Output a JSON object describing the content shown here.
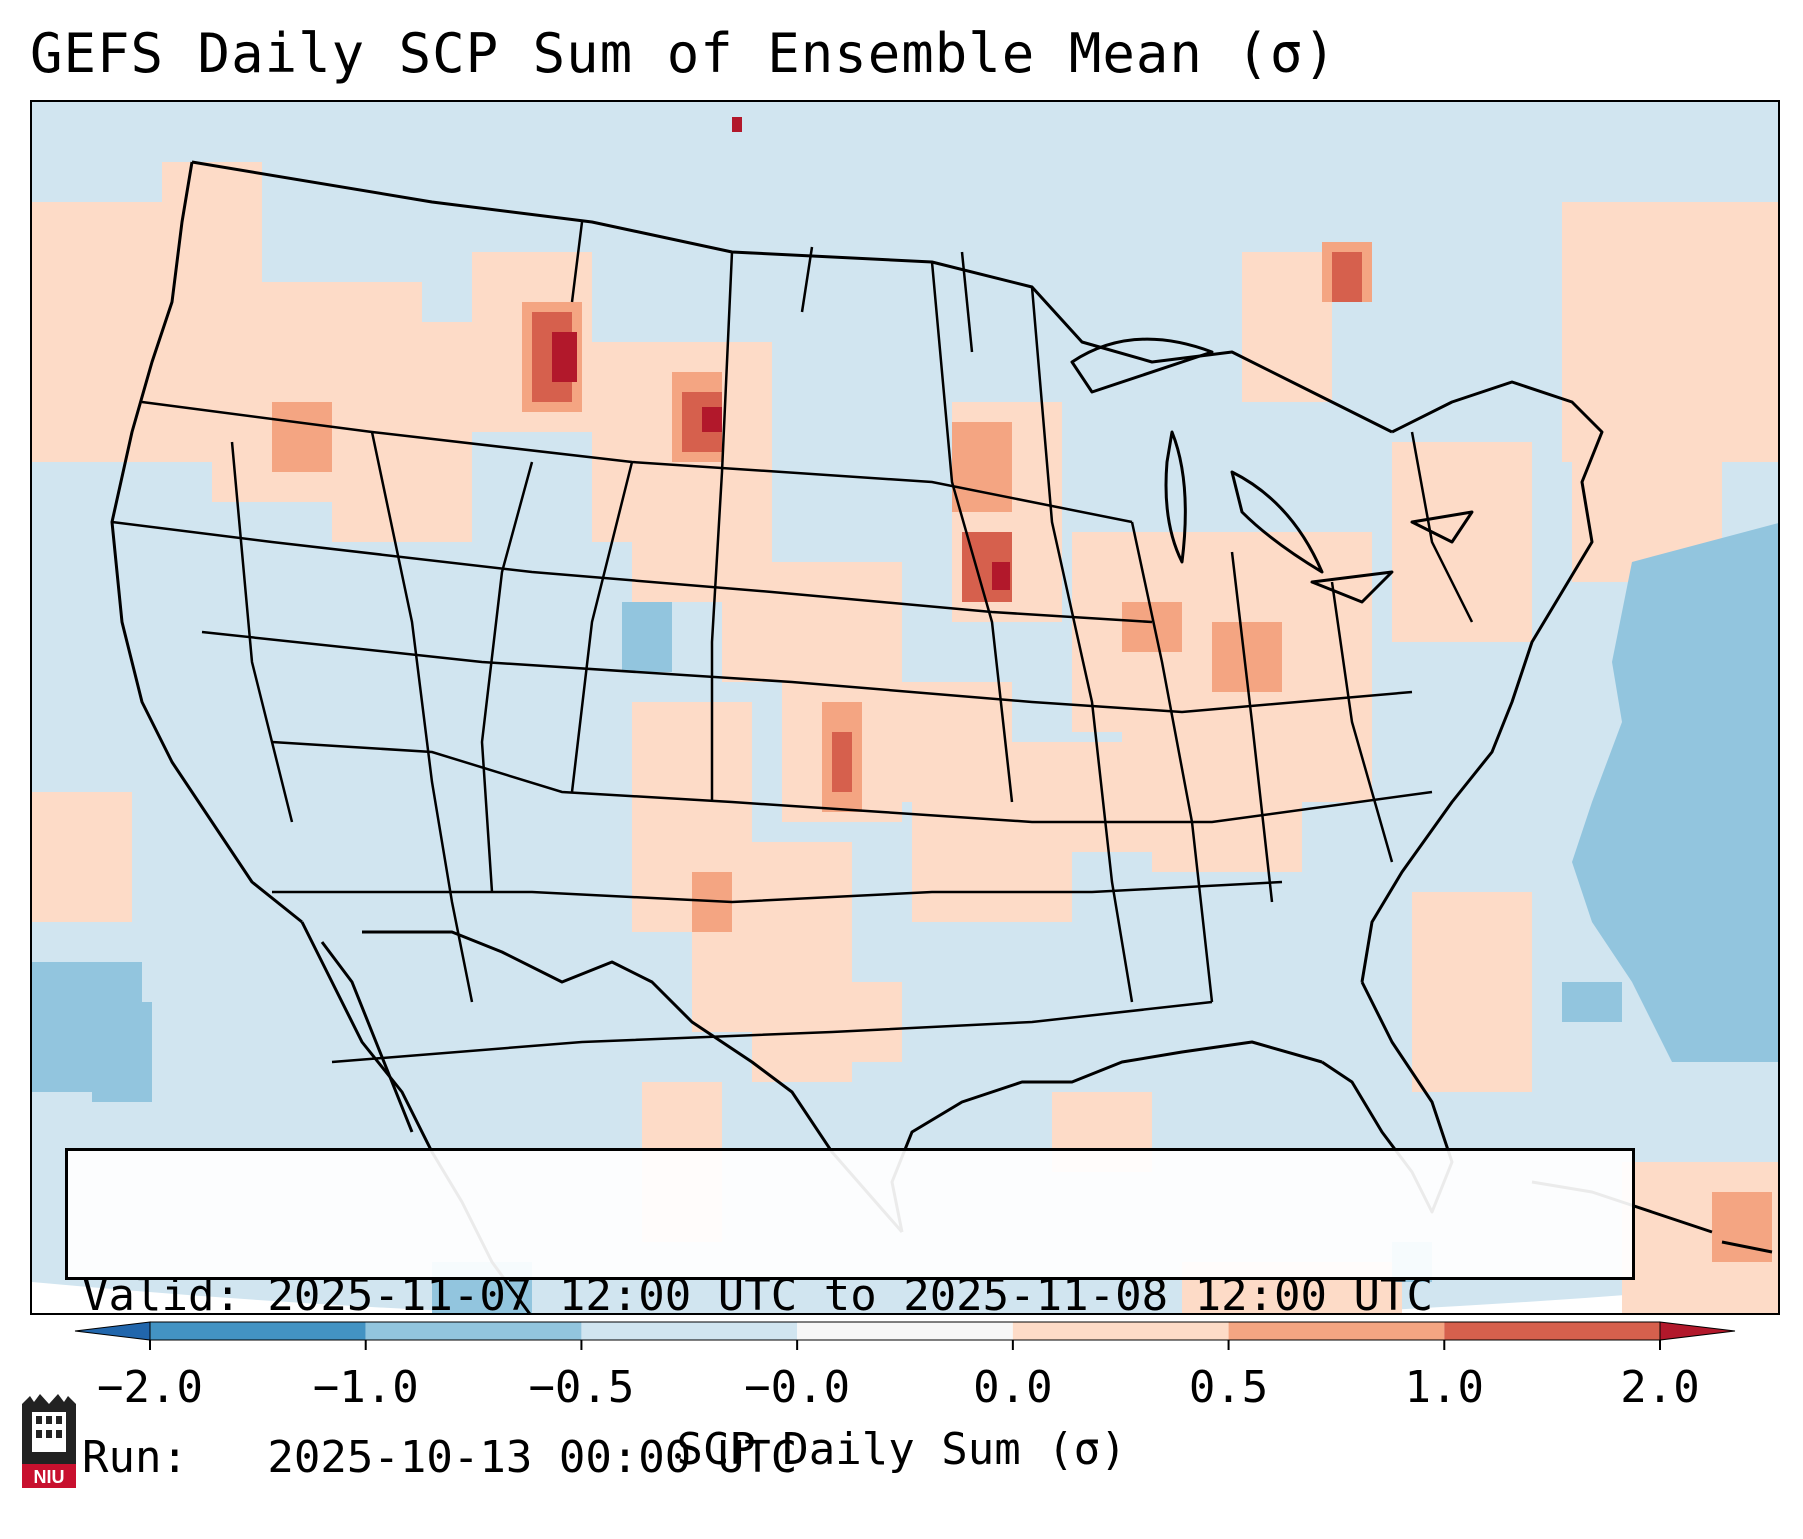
{
  "title": "GEFS Daily SCP Sum of Ensemble Mean (σ)",
  "info": {
    "valid_line": "Valid: 2025-11-07 12:00 UTC to 2025-11-08 12:00 UTC",
    "run_line": "Run:   2025-10-13 00:00 UTC"
  },
  "colorbar": {
    "label": "SCP Daily Sum (σ)",
    "ticks": [
      "−2.0",
      "−1.0",
      "−0.5",
      "−0.0",
      "0.0",
      "0.5",
      "1.0",
      "2.0"
    ],
    "bins": [
      {
        "range": "< -2.0",
        "color": "#2166ac"
      },
      {
        "range": "-2.0 to -1.0",
        "color": "#4393c3"
      },
      {
        "range": "-1.0 to -0.5",
        "color": "#92c5de"
      },
      {
        "range": "-0.5 to -0.0",
        "color": "#d1e5f0"
      },
      {
        "range": "-0.0 to 0.0",
        "color": "#f7f7f7"
      },
      {
        "range": "0.0 to 0.5",
        "color": "#fddbc7"
      },
      {
        "range": "0.5 to 1.0",
        "color": "#f4a582"
      },
      {
        "range": "1.0 to 2.0",
        "color": "#d6604d"
      },
      {
        "range": "> 2.0",
        "color": "#b2182b"
      }
    ]
  },
  "map": {
    "background_value_color": "#d1e5f0",
    "outline_color": "#000000",
    "feature_names": [
      "us-states",
      "canada-provinces",
      "mexico",
      "gulf-coast",
      "great-lakes",
      "caribbean"
    ]
  },
  "logo": {
    "text": "NIU",
    "color": "#c8102e"
  }
}
